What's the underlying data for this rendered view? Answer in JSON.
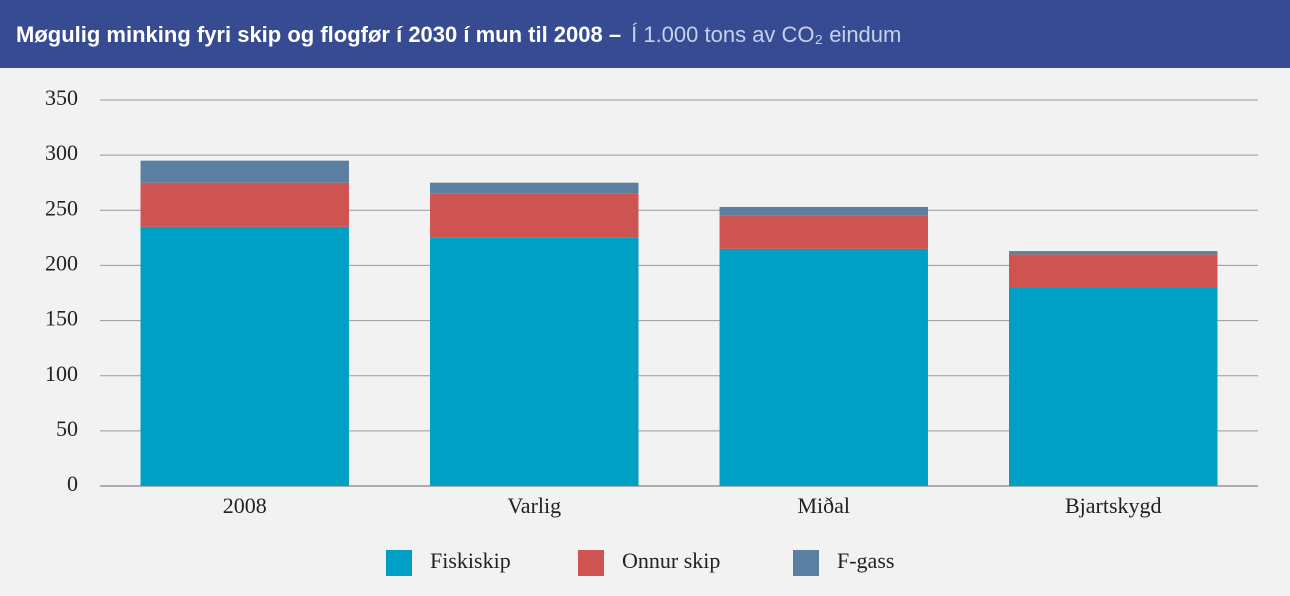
{
  "chart_data": {
    "type": "stacked_bar",
    "title": "Møgulig minking fyri skip og flogfør í 2030 í mun til 2008 –",
    "subtitle": "Í 1.000 tons av CO₂ eindum",
    "categories": [
      "2008",
      "Varlig",
      "Miðal",
      "Bjartskygd"
    ],
    "series": [
      {
        "name": "Fiskiskip",
        "color": "#00a0c4",
        "values": [
          235,
          225,
          215,
          180
        ]
      },
      {
        "name": "Onnur skip",
        "color": "#cd5451",
        "values": [
          40,
          40,
          30,
          30
        ]
      },
      {
        "name": "F-gass",
        "color": "#5a7fa0",
        "values": [
          20,
          10,
          8,
          3
        ]
      }
    ],
    "ylim": [
      0,
      350
    ],
    "yticks": [
      0,
      50,
      100,
      150,
      200,
      250,
      300,
      350
    ],
    "grid": true
  }
}
